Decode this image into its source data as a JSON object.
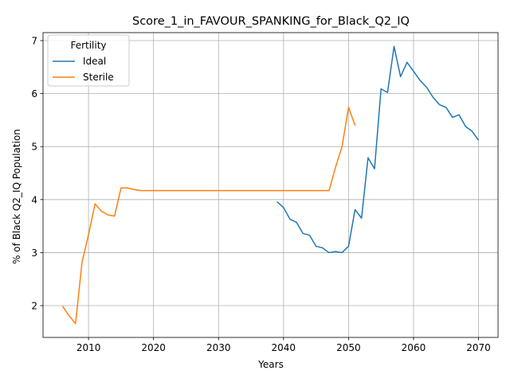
{
  "chart_data": {
    "type": "line",
    "title": "Score_1_in_FAVOUR_SPANKING_for_Black_Q2_IQ",
    "xlabel": "Years",
    "ylabel": "% of Black Q2_IQ Population",
    "xlim": [
      2003,
      2073
    ],
    "ylim": [
      1.4,
      7.15
    ],
    "xticks": [
      2010,
      2020,
      2030,
      2040,
      2050,
      2060,
      2070
    ],
    "yticks": [
      2,
      3,
      4,
      5,
      6,
      7
    ],
    "grid": true,
    "legend": {
      "title": "Fertility",
      "placement": "top-left"
    },
    "series": [
      {
        "name": "Ideal",
        "color": "#1f77b4",
        "x": [
          2039,
          2040,
          2041,
          2042,
          2043,
          2044,
          2045,
          2046,
          2047,
          2048,
          2049,
          2050,
          2051,
          2052,
          2053,
          2054,
          2055,
          2056,
          2057,
          2058,
          2059,
          2060,
          2061,
          2062,
          2063,
          2064,
          2065,
          2066,
          2067,
          2068,
          2069,
          2070
        ],
        "y": [
          3.96,
          3.85,
          3.63,
          3.57,
          3.36,
          3.33,
          3.12,
          3.09,
          3.0,
          3.02,
          3.0,
          3.12,
          3.81,
          3.65,
          4.79,
          4.58,
          6.09,
          6.02,
          6.89,
          6.32,
          6.59,
          6.42,
          6.25,
          6.12,
          5.93,
          5.79,
          5.74,
          5.55,
          5.6,
          5.38,
          5.29,
          5.12
        ]
      },
      {
        "name": "Sterile",
        "color": "#ff7f0e",
        "x": [
          2006,
          2007,
          2008,
          2009,
          2010,
          2011,
          2012,
          2013,
          2014,
          2015,
          2016,
          2017,
          2018,
          2019,
          2020,
          2021,
          2022,
          2023,
          2024,
          2025,
          2026,
          2027,
          2028,
          2029,
          2030,
          2031,
          2032,
          2033,
          2034,
          2035,
          2036,
          2037,
          2038,
          2039,
          2040,
          2041,
          2042,
          2043,
          2044,
          2045,
          2046,
          2047,
          2048,
          2049,
          2050,
          2051
        ],
        "y": [
          1.99,
          1.81,
          1.66,
          2.82,
          3.34,
          3.92,
          3.78,
          3.71,
          3.69,
          4.22,
          4.22,
          4.19,
          4.17,
          4.17,
          4.17,
          4.17,
          4.17,
          4.17,
          4.17,
          4.17,
          4.17,
          4.17,
          4.17,
          4.17,
          4.17,
          4.17,
          4.17,
          4.17,
          4.17,
          4.17,
          4.17,
          4.17,
          4.17,
          4.17,
          4.17,
          4.17,
          4.17,
          4.17,
          4.17,
          4.17,
          4.17,
          4.17,
          4.61,
          5.0,
          5.74,
          5.4
        ]
      }
    ]
  }
}
